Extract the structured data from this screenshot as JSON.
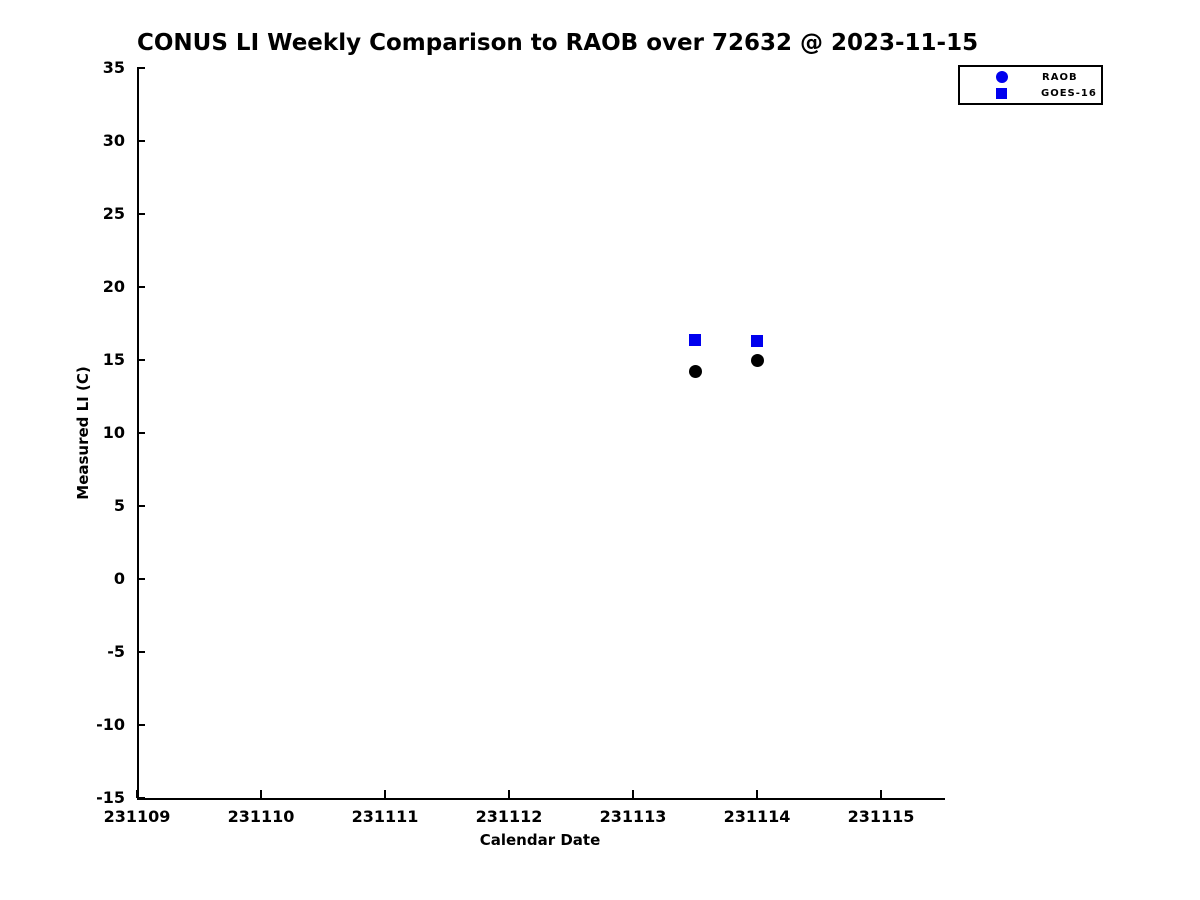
{
  "title": "CONUS LI Weekly Comparison to RAOB over 72632 @ 2023-11-15",
  "colors": {
    "background": "#ffffff",
    "axis": "#000000",
    "blue_marker": "#0000ee",
    "black_marker": "#000000"
  },
  "chart_data": {
    "type": "scatter",
    "title": "CONUS LI Weekly Comparison to RAOB over 72632 @ 2023-11-15",
    "xlabel": "Calendar Date",
    "ylabel": "Measured LI (C)",
    "xlim": [
      231109,
      231115.5
    ],
    "ylim": [
      -15,
      35
    ],
    "x_ticks": [
      231109,
      231110,
      231111,
      231112,
      231113,
      231114,
      231115
    ],
    "y_ticks": [
      -15,
      -10,
      -5,
      0,
      5,
      10,
      15,
      20,
      25,
      30,
      35
    ],
    "grid": false,
    "legend": {
      "position": "top-right-outside",
      "entries": [
        {
          "label": "RAOB",
          "marker": "circle",
          "color": "#0000ee"
        },
        {
          "label": "GOES-16",
          "marker": "square",
          "color": "#0000ee"
        }
      ]
    },
    "series": [
      {
        "name": "RAOB",
        "marker": "circle",
        "color": "#000000",
        "marker_size": 13,
        "points": [
          [
            231113.5,
            14.2
          ],
          [
            231114.0,
            15.0
          ]
        ]
      },
      {
        "name": "GOES-16",
        "marker": "square",
        "color": "#0000ee",
        "marker_size": 12,
        "points": [
          [
            231113.5,
            16.4
          ],
          [
            231114.0,
            16.3
          ]
        ]
      }
    ]
  }
}
